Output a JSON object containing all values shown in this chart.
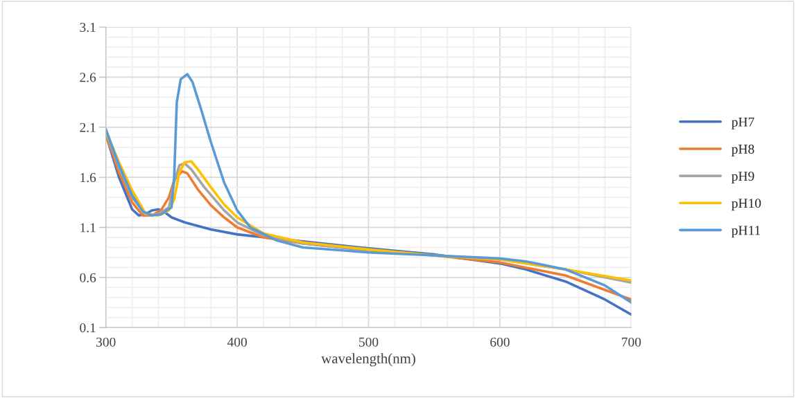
{
  "chart_data": {
    "type": "line",
    "xlabel": "wavelength(nm)",
    "xlim": [
      300,
      700
    ],
    "ylim": [
      0.1,
      3.1
    ],
    "xticks": [
      300,
      {
        "value": 320,
        "label": null
      },
      {
        "value": 340,
        "label": null
      },
      {
        "value": 360,
        "label": null
      },
      {
        "value": 380,
        "label": null
      },
      400,
      {
        "value": 420,
        "label": null
      },
      {
        "value": 440,
        "label": null
      },
      {
        "value": 460,
        "label": null
      },
      {
        "value": 480,
        "label": null
      },
      500,
      {
        "value": 520,
        "label": null
      },
      {
        "value": 540,
        "label": null
      },
      {
        "value": 560,
        "label": null
      },
      {
        "value": 580,
        "label": null
      },
      600,
      {
        "value": 620,
        "label": null
      },
      {
        "value": 640,
        "label": null
      },
      {
        "value": 660,
        "label": null
      },
      {
        "value": 680,
        "label": null
      },
      700
    ],
    "yticks": [
      0.1,
      {
        "value": 0.2,
        "label": null
      },
      {
        "value": 0.3,
        "label": null
      },
      {
        "value": 0.4,
        "label": null
      },
      {
        "value": 0.5,
        "label": null
      },
      0.6,
      {
        "value": 0.7,
        "label": null
      },
      {
        "value": 0.8,
        "label": null
      },
      {
        "value": 0.9,
        "label": null
      },
      {
        "value": 1.0,
        "label": null
      },
      1.1,
      {
        "value": 1.2,
        "label": null
      },
      {
        "value": 1.3,
        "label": null
      },
      {
        "value": 1.4,
        "label": null
      },
      {
        "value": 1.5,
        "label": null
      },
      1.6,
      {
        "value": 1.7,
        "label": null
      },
      {
        "value": 1.8,
        "label": null
      },
      {
        "value": 1.9,
        "label": null
      },
      {
        "value": 2.0,
        "label": null
      },
      2.1,
      {
        "value": 2.2,
        "label": null
      },
      {
        "value": 2.3,
        "label": null
      },
      {
        "value": 2.4,
        "label": null
      },
      {
        "value": 2.5,
        "label": null
      },
      2.6,
      {
        "value": 2.7,
        "label": null
      },
      {
        "value": 2.8,
        "label": null
      },
      {
        "value": 2.9,
        "label": null
      },
      {
        "value": 3.0,
        "label": null
      },
      3.1
    ],
    "grid": true,
    "legend": "right",
    "marker": "none",
    "line_style": "solid",
    "series": [
      {
        "name": "pH7",
        "color": "#4472c4",
        "x": [
          300,
          310,
          320,
          325,
          330,
          335,
          340,
          345,
          350,
          360,
          380,
          400,
          450,
          500,
          550,
          600,
          620,
          650,
          680,
          700
        ],
        "values": [
          2.03,
          1.6,
          1.28,
          1.22,
          1.23,
          1.27,
          1.28,
          1.25,
          1.2,
          1.15,
          1.08,
          1.03,
          0.96,
          0.89,
          0.83,
          0.74,
          0.68,
          0.56,
          0.38,
          0.23
        ]
      },
      {
        "name": "pH8",
        "color": "#ed7d31",
        "x": [
          300,
          310,
          320,
          328,
          335,
          342,
          348,
          352,
          358,
          362,
          370,
          380,
          390,
          400,
          420,
          450,
          500,
          550,
          600,
          650,
          700
        ],
        "values": [
          2.03,
          1.65,
          1.35,
          1.22,
          1.22,
          1.27,
          1.4,
          1.57,
          1.66,
          1.64,
          1.48,
          1.32,
          1.2,
          1.1,
          1.0,
          0.94,
          0.87,
          0.82,
          0.75,
          0.62,
          0.38
        ]
      },
      {
        "name": "pH9",
        "color": "#a5a5a5",
        "x": [
          300,
          310,
          320,
          330,
          340,
          348,
          352,
          356,
          360,
          365,
          375,
          390,
          400,
          420,
          450,
          500,
          550,
          600,
          650,
          700
        ],
        "values": [
          2.05,
          1.7,
          1.4,
          1.23,
          1.23,
          1.3,
          1.55,
          1.72,
          1.74,
          1.68,
          1.5,
          1.27,
          1.15,
          1.02,
          0.94,
          0.87,
          0.82,
          0.78,
          0.68,
          0.55
        ]
      },
      {
        "name": "pH10",
        "color": "#ffc000",
        "x": [
          300,
          310,
          320,
          330,
          340,
          348,
          352,
          356,
          360,
          365,
          370,
          380,
          390,
          400,
          420,
          450,
          500,
          550,
          600,
          650,
          700
        ],
        "values": [
          2.06,
          1.75,
          1.47,
          1.24,
          1.22,
          1.27,
          1.38,
          1.65,
          1.75,
          1.76,
          1.68,
          1.5,
          1.33,
          1.2,
          1.04,
          0.95,
          0.88,
          0.82,
          0.78,
          0.68,
          0.57
        ]
      },
      {
        "name": "pH11",
        "color": "#5b9bd5",
        "x": [
          300,
          310,
          320,
          328,
          335,
          342,
          350,
          352,
          354,
          357,
          362,
          366,
          372,
          380,
          390,
          400,
          410,
          430,
          450,
          500,
          550,
          600,
          620,
          650,
          680,
          700
        ],
        "values": [
          2.08,
          1.72,
          1.42,
          1.26,
          1.22,
          1.23,
          1.3,
          1.6,
          2.35,
          2.58,
          2.63,
          2.55,
          2.3,
          1.95,
          1.55,
          1.27,
          1.1,
          0.97,
          0.9,
          0.85,
          0.82,
          0.79,
          0.76,
          0.68,
          0.52,
          0.35
        ]
      }
    ]
  }
}
